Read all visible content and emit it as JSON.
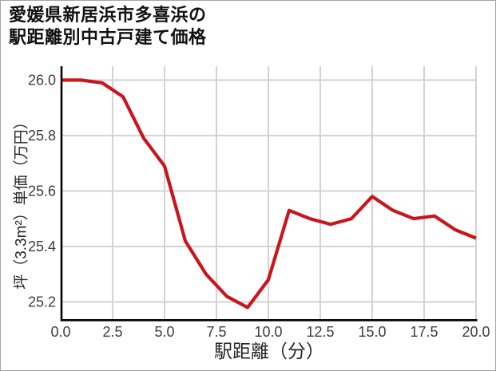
{
  "page": {
    "title_line1": "愛媛県新居浜市多喜浜の",
    "title_line2": "駅距離別中古戸建て価格"
  },
  "chart_data": {
    "type": "line",
    "title": "愛媛県新居浜市多喜浜の駅距離別中古戸建て価格",
    "xlabel": "駅距離（分）",
    "ylabel": "坪（3.3m²）単価（万円）",
    "x": [
      0,
      1,
      2,
      3,
      4,
      5,
      6,
      7,
      8,
      9,
      10,
      11,
      12,
      13,
      14,
      15,
      16,
      17,
      18,
      19,
      20
    ],
    "y": [
      26.0,
      26.0,
      25.99,
      25.94,
      25.79,
      25.69,
      25.42,
      25.3,
      25.22,
      25.18,
      25.28,
      25.53,
      25.5,
      25.48,
      25.5,
      25.58,
      25.53,
      25.5,
      25.51,
      25.46,
      25.43
    ],
    "xlim": [
      0,
      20
    ],
    "ylim": [
      25.135,
      26.05
    ],
    "x_ticks": [
      "0.0",
      "2.5",
      "5.0",
      "7.5",
      "10.0",
      "12.5",
      "15.0",
      "17.5",
      "20.0"
    ],
    "x_tick_values": [
      0,
      2.5,
      5,
      7.5,
      10,
      12.5,
      15,
      17.5,
      20
    ],
    "y_ticks": [
      "26.0",
      "25.8",
      "25.6",
      "25.4",
      "25.2"
    ],
    "y_tick_values": [
      26.0,
      25.8,
      25.6,
      25.4,
      25.2
    ],
    "grid": true,
    "legend_position": "none",
    "line_color": "#c9151b",
    "grid_color": "#d3d3d3",
    "spine_color": "#000000",
    "tick_text_color": "#3d3d3d"
  }
}
